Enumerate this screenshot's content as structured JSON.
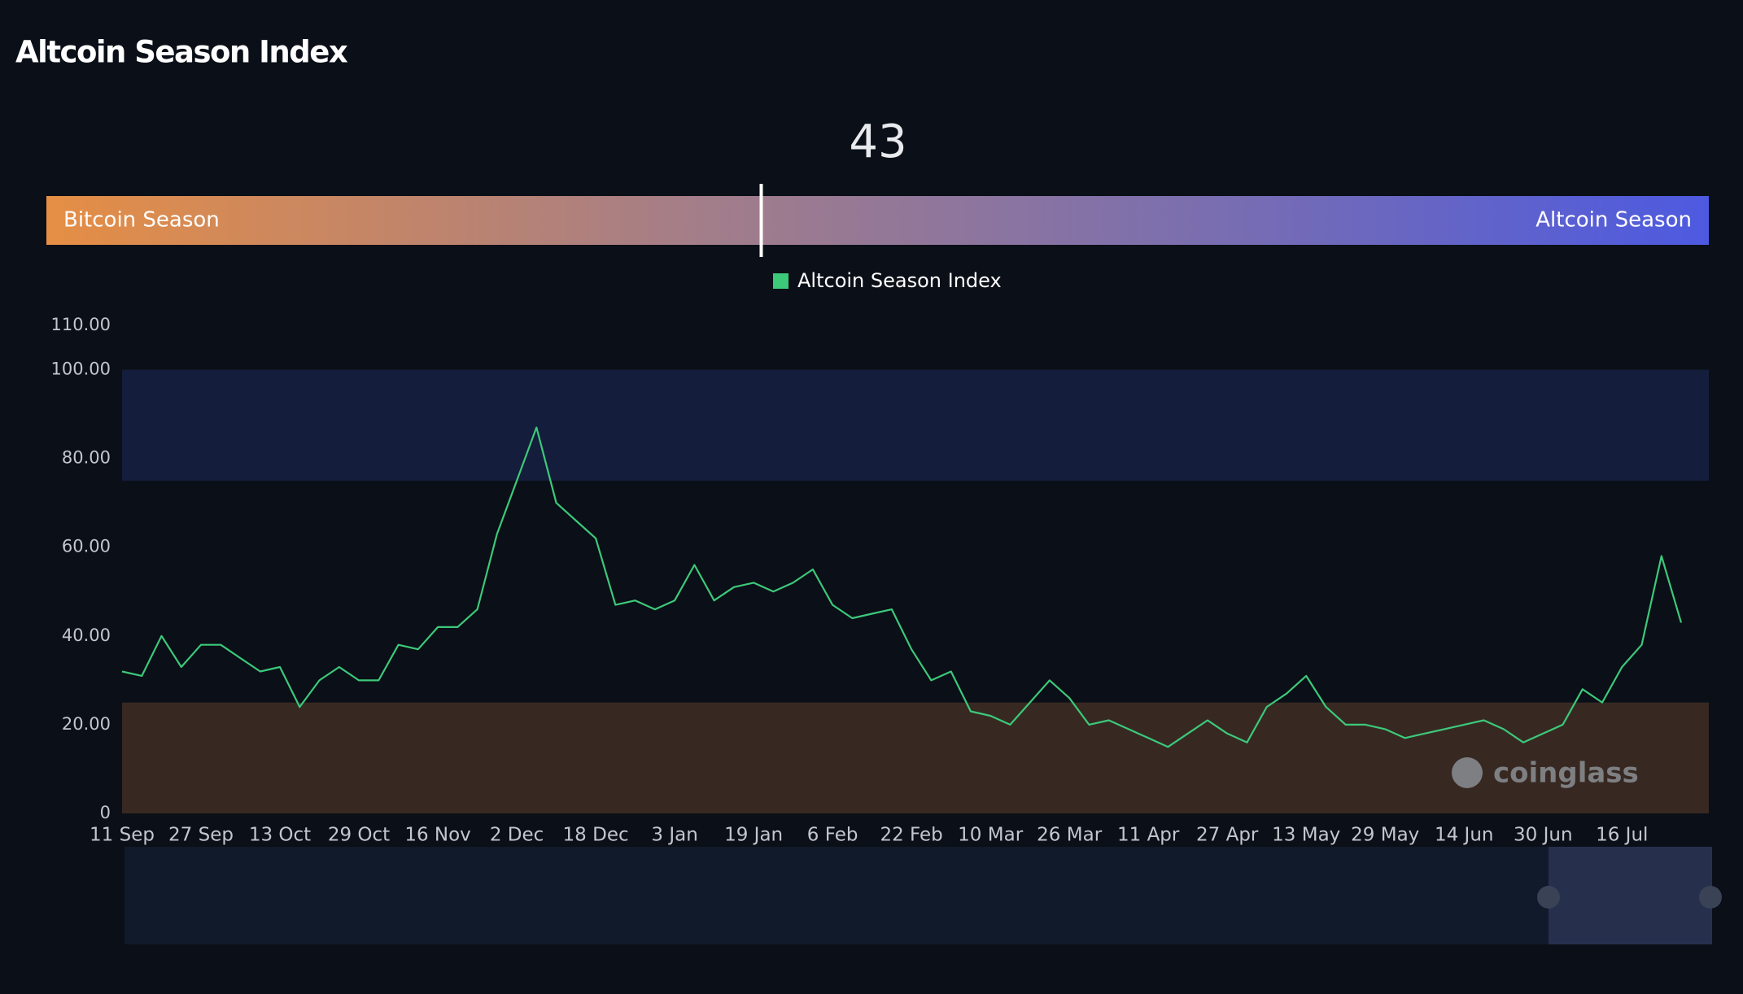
{
  "title": "Altcoin Season Index",
  "gauge": {
    "value": 43,
    "min": 0,
    "max": 100,
    "left_label": "Bitcoin Season",
    "right_label": "Altcoin Season"
  },
  "watermark": "coinglass",
  "chart_data": {
    "type": "line",
    "categories": [
      "11 Sep",
      null,
      null,
      null,
      "27 Sep",
      null,
      null,
      null,
      "13 Oct",
      null,
      null,
      null,
      "29 Oct",
      null,
      null,
      null,
      "16 Nov",
      null,
      null,
      null,
      "2 Dec",
      null,
      null,
      null,
      "18 Dec",
      null,
      null,
      null,
      "3 Jan",
      null,
      null,
      null,
      "19 Jan",
      null,
      null,
      null,
      "6 Feb",
      null,
      null,
      null,
      "22 Feb",
      null,
      null,
      null,
      "10 Mar",
      null,
      null,
      null,
      "26 Mar",
      null,
      null,
      null,
      "11 Apr",
      null,
      null,
      null,
      "27 Apr",
      null,
      null,
      null,
      "13 May",
      null,
      null,
      null,
      "29 May",
      null,
      null,
      null,
      "14 Jun",
      null,
      null,
      null,
      "30 Jun",
      null,
      null,
      null,
      "16 Jul",
      null,
      null,
      null
    ],
    "series": [
      {
        "name": "Altcoin Season Index",
        "color": "#3cc97a",
        "values": [
          32,
          31,
          40,
          33,
          38,
          38,
          35,
          32,
          33,
          24,
          30,
          33,
          30,
          30,
          38,
          37,
          42,
          42,
          46,
          63,
          75,
          87,
          70,
          66,
          62,
          47,
          48,
          46,
          48,
          56,
          48,
          51,
          52,
          50,
          52,
          55,
          47,
          44,
          45,
          46,
          37,
          30,
          32,
          23,
          22,
          20,
          25,
          30,
          26,
          20,
          21,
          19,
          17,
          15,
          18,
          21,
          18,
          16,
          24,
          27,
          31,
          24,
          20,
          20,
          19,
          17,
          18,
          19,
          20,
          21,
          19,
          16,
          18,
          20,
          28,
          25,
          33,
          38,
          58,
          43
        ]
      }
    ],
    "ylim": [
      0,
      110
    ],
    "yticks": [
      0,
      {
        "value": 20,
        "label": "20.00"
      },
      {
        "value": 40,
        "label": "40.00"
      },
      {
        "value": 60,
        "label": "60.00"
      },
      {
        "value": 80,
        "label": "80.00"
      },
      {
        "value": 100,
        "label": "100.00"
      },
      {
        "value": 110,
        "label": "110.00"
      }
    ],
    "bands": [
      {
        "from": 75,
        "to": 100,
        "color": "#141d3b"
      },
      {
        "from": 0,
        "to": 25,
        "color": "#372922"
      }
    ],
    "legend": "top"
  }
}
